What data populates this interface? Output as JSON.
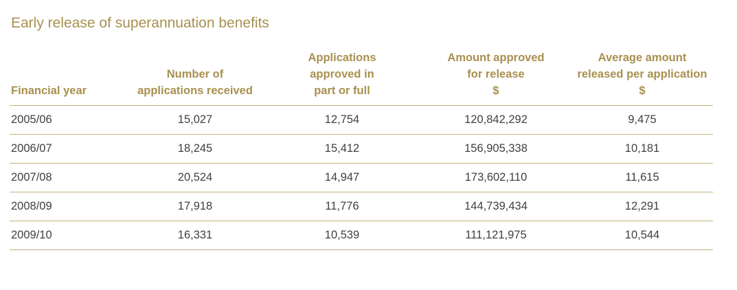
{
  "title": "Early release of superannuation benefits",
  "table": {
    "headers": [
      {
        "lines": [
          "Financial year"
        ]
      },
      {
        "lines": [
          "Number of",
          "applications received"
        ]
      },
      {
        "lines": [
          "Applications",
          "approved in",
          "part or full"
        ]
      },
      {
        "lines": [
          "Amount approved",
          "for release",
          "$"
        ]
      },
      {
        "lines": [
          "Average amount",
          "released per application",
          "$"
        ]
      }
    ],
    "rows": [
      [
        "2005/06",
        "15,027",
        "12,754",
        "120,842,292",
        "9,475"
      ],
      [
        "2006/07",
        "18,245",
        "15,412",
        "156,905,338",
        "10,181"
      ],
      [
        "2007/08",
        "20,524",
        "14,947",
        "173,602,110",
        "11,615"
      ],
      [
        "2008/09",
        "17,918",
        "11,776",
        "144,739,434",
        "12,291"
      ],
      [
        "2009/10",
        "16,331",
        "10,539",
        "111,121,975",
        "10,544"
      ]
    ]
  }
}
